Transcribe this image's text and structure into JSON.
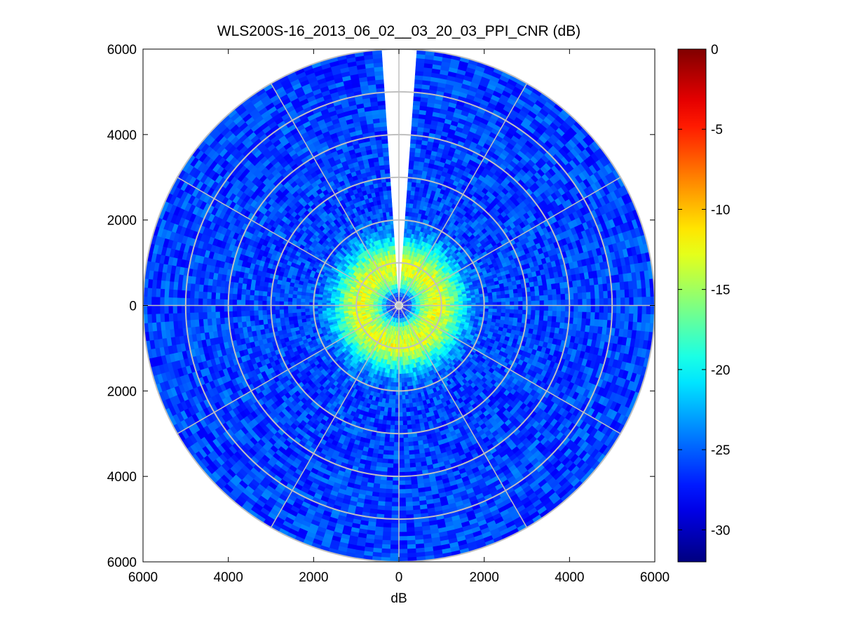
{
  "chart_data": {
    "type": "heatmap",
    "title": "WLS200S-16_2013_06_02__03_20_03_PPI_CNR (dB)",
    "xlabel": "dB",
    "ylabel": "",
    "xlim": [
      -6000,
      6000
    ],
    "ylim": [
      -6000,
      6000
    ],
    "x_ticks": [
      -6000,
      -4000,
      -2000,
      0,
      2000,
      4000,
      6000
    ],
    "x_tick_labels": [
      "6000",
      "4000",
      "2000",
      "0",
      "2000",
      "4000",
      "6000"
    ],
    "y_ticks": [
      6000,
      4000,
      2000,
      0,
      -2000,
      -4000,
      -6000
    ],
    "y_tick_labels": [
      "6000",
      "4000",
      "2000",
      "0",
      "2000",
      "4000",
      "6000"
    ],
    "polar_grid": {
      "range_rings": [
        1000,
        2000,
        3000,
        4000,
        5000,
        6000
      ],
      "spokes_deg": [
        0,
        30,
        60,
        90,
        120,
        150,
        180,
        210,
        240,
        270,
        300,
        330
      ],
      "color": "#c0c0c0"
    },
    "scan": {
      "max_range": 6000,
      "gap_azimuth_deg": [
        356,
        4
      ],
      "cnr_peak_db": -13,
      "cnr_peak_range": 900,
      "cnr_background_db": -26
    },
    "colorbar": {
      "colormap": "jet",
      "min": -32,
      "max": 0,
      "ticks": [
        0,
        -5,
        -10,
        -15,
        -20,
        -25,
        -30
      ],
      "tick_labels": [
        "0",
        "-5",
        "-10",
        "-15",
        "-20",
        "-25",
        "-30"
      ]
    },
    "grid": false,
    "legend": "none"
  }
}
